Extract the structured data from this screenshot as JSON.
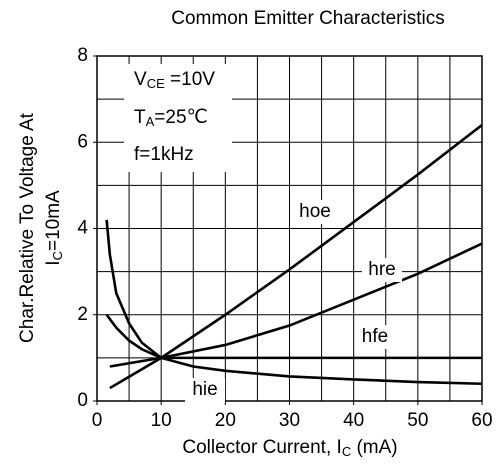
{
  "chart_data": {
    "type": "line",
    "title": "Common Emitter Characteristics",
    "x_label": {
      "text": "Collector Current, I",
      "sub": "C",
      "rest": " (mA)"
    },
    "y_label": [
      {
        "text": "Char.Relative To Voltage At"
      },
      {
        "text": "I",
        "sub": "C",
        "rest": "=10mA"
      }
    ],
    "annotations": [
      {
        "text": "V",
        "sub": "CE",
        "rest": " =10V"
      },
      {
        "text": "T",
        "sub": "A",
        "rest": "=25℃"
      },
      {
        "text": "f=1kHz"
      }
    ],
    "xlim": [
      0,
      60
    ],
    "ylim": [
      0,
      8
    ],
    "xticks": [
      0,
      10,
      20,
      30,
      40,
      50,
      60
    ],
    "yticks": [
      0,
      2,
      4,
      6,
      8
    ],
    "xgrid": [
      5,
      10,
      15,
      20,
      25,
      30,
      35,
      40,
      45,
      50,
      55
    ],
    "ygrid": [
      1,
      2,
      3,
      4,
      5,
      6,
      7
    ],
    "grid": true,
    "series": [
      {
        "name": "hoe",
        "color": "#000000",
        "x": [
          2,
          10,
          20,
          30,
          40,
          50,
          60
        ],
        "values": [
          0.3,
          1,
          2,
          3.05,
          4.15,
          5.25,
          6.4
        ]
      },
      {
        "name": "hre",
        "color": "#000000",
        "x": [
          2,
          10,
          20,
          30,
          40,
          50,
          60
        ],
        "values": [
          0.8,
          1,
          1.3,
          1.75,
          2.35,
          2.95,
          3.65
        ]
      },
      {
        "name": "hfe",
        "color": "#000000",
        "x": [
          1.5,
          3,
          5,
          7,
          10,
          20,
          40,
          60
        ],
        "values": [
          2.0,
          1.7,
          1.4,
          1.2,
          1.0,
          1.0,
          1.0,
          1.0
        ]
      },
      {
        "name": "hie",
        "color": "#000000",
        "x": [
          1.5,
          2,
          3,
          5,
          7,
          10,
          15,
          20,
          30,
          40,
          50,
          60
        ],
        "values": [
          4.2,
          3.4,
          2.5,
          1.8,
          1.35,
          1.0,
          0.8,
          0.7,
          0.57,
          0.5,
          0.44,
          0.4
        ]
      }
    ]
  }
}
